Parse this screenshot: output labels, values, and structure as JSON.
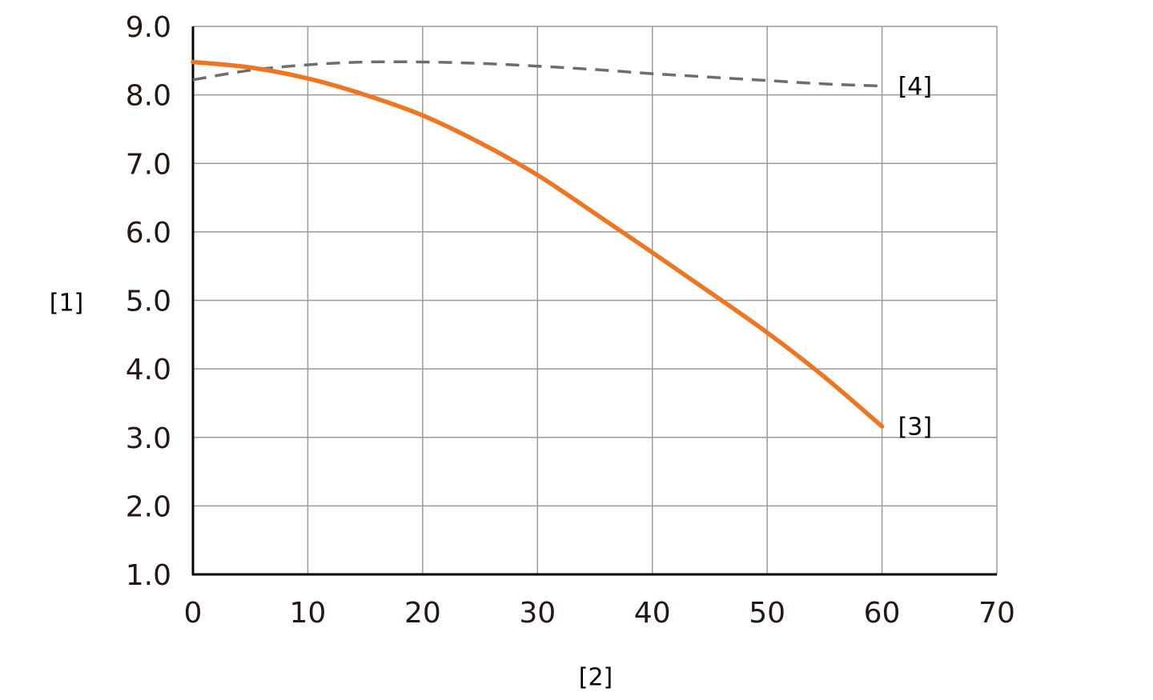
{
  "chart_data": {
    "type": "line",
    "xlabel": "[2]",
    "ylabel": "[1]",
    "xlim": [
      0,
      70
    ],
    "ylim": [
      1.0,
      9.0
    ],
    "x_ticks": [
      0,
      10,
      20,
      30,
      40,
      50,
      60,
      70
    ],
    "x_tick_labels": [
      "0",
      "10",
      "20",
      "30",
      "40",
      "50",
      "60",
      "70"
    ],
    "y_ticks": [
      1.0,
      2.0,
      3.0,
      4.0,
      5.0,
      6.0,
      7.0,
      8.0,
      9.0
    ],
    "y_tick_labels": [
      "1.0",
      "2.0",
      "3.0",
      "4.0",
      "5.0",
      "6.0",
      "7.0",
      "8.0",
      "9.0"
    ],
    "grid": true,
    "legend": "inline labels at right end of each line",
    "series": [
      {
        "name": "[3]",
        "color": "#ee7623",
        "style": "solid",
        "x": [
          0,
          5,
          10,
          15,
          20,
          25,
          30,
          35,
          40,
          45,
          50,
          55,
          60
        ],
        "y": [
          8.48,
          8.4,
          8.24,
          8.0,
          7.7,
          7.3,
          6.83,
          6.27,
          5.7,
          5.12,
          4.53,
          3.88,
          3.16
        ]
      },
      {
        "name": "[4]",
        "color": "#6d6d6d",
        "style": "dashed",
        "x": [
          0,
          5,
          10,
          15,
          20,
          25,
          30,
          35,
          40,
          45,
          50,
          55,
          60
        ],
        "y": [
          8.22,
          8.36,
          8.44,
          8.48,
          8.48,
          8.46,
          8.42,
          8.37,
          8.31,
          8.26,
          8.21,
          8.16,
          8.13
        ]
      }
    ]
  }
}
